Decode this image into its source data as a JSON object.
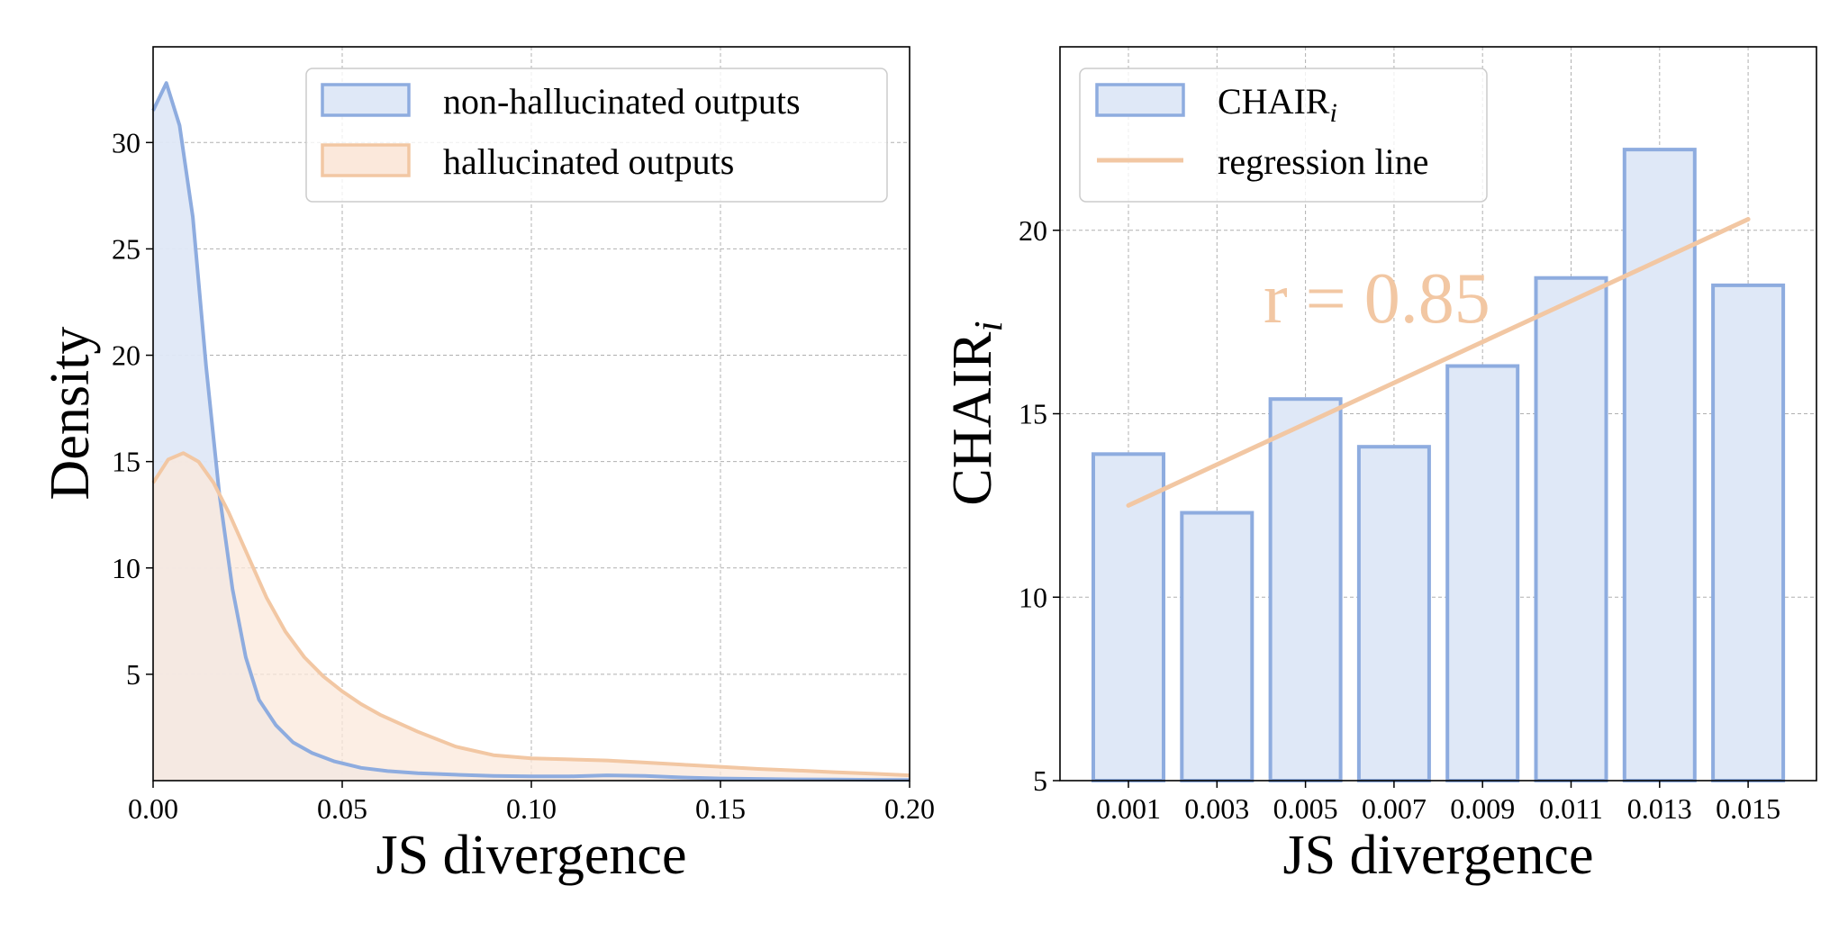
{
  "colors": {
    "blue_line": "#8eacdf",
    "blue_fill": "#dfe8f7",
    "orange_line": "#f2c7a3",
    "orange_fill": "#fbe8db",
    "overlap_fill": "#e3e1e6"
  },
  "chart_data": [
    {
      "type": "area",
      "xlabel": "JS divergence",
      "ylabel": "Density",
      "xlim": [
        0,
        0.2
      ],
      "ylim": [
        0,
        34.5
      ],
      "x_ticks": [
        0,
        0.05,
        0.1,
        0.15,
        0.2
      ],
      "x_tick_labels": [
        "0.00",
        "0.05",
        "0.10",
        "0.15",
        "0.20"
      ],
      "y_ticks": [
        5,
        10,
        15,
        20,
        25,
        30
      ],
      "y_tick_labels": [
        "5",
        "10",
        "15",
        "20",
        "25",
        "30"
      ],
      "grid": true,
      "legend_position": "top-right",
      "series": [
        {
          "name": "non-hallucinated outputs",
          "color_key": "blue",
          "x": [
            0,
            0.0035,
            0.007,
            0.0105,
            0.014,
            0.0175,
            0.021,
            0.0245,
            0.028,
            0.0325,
            0.037,
            0.042,
            0.048,
            0.055,
            0.062,
            0.07,
            0.08,
            0.09,
            0.1,
            0.11,
            0.12,
            0.13,
            0.14,
            0.15,
            0.16,
            0.17,
            0.18,
            0.19,
            0.2
          ],
          "y": [
            31.5,
            32.8,
            30.8,
            26.5,
            19.5,
            13.5,
            9.0,
            5.8,
            3.8,
            2.6,
            1.8,
            1.3,
            0.9,
            0.6,
            0.45,
            0.35,
            0.28,
            0.22,
            0.2,
            0.2,
            0.25,
            0.22,
            0.15,
            0.1,
            0.08,
            0.06,
            0.05,
            0.04,
            0.03
          ]
        },
        {
          "name": "hallucinated outputs",
          "color_key": "orange",
          "x": [
            0,
            0.004,
            0.008,
            0.012,
            0.016,
            0.02,
            0.025,
            0.03,
            0.035,
            0.04,
            0.045,
            0.05,
            0.055,
            0.06,
            0.07,
            0.08,
            0.09,
            0.1,
            0.11,
            0.12,
            0.13,
            0.14,
            0.15,
            0.16,
            0.17,
            0.18,
            0.19,
            0.2
          ],
          "y": [
            14.0,
            15.1,
            15.4,
            15.0,
            14.0,
            12.6,
            10.6,
            8.6,
            7.0,
            5.8,
            4.9,
            4.2,
            3.6,
            3.1,
            2.3,
            1.6,
            1.2,
            1.05,
            1.0,
            0.95,
            0.85,
            0.75,
            0.65,
            0.55,
            0.48,
            0.4,
            0.33,
            0.25
          ]
        }
      ]
    },
    {
      "type": "bar",
      "xlabel": "JS divergence",
      "ylabel": "CHAIR",
      "ylabel_subscript": "i",
      "categories": [
        "0.001",
        "0.003",
        "0.005",
        "0.007",
        "0.009",
        "0.011",
        "0.013",
        "0.015"
      ],
      "ylim": [
        5,
        25
      ],
      "y_ticks": [
        5,
        10,
        15,
        20
      ],
      "y_tick_labels": [
        "5",
        "10",
        "15",
        "20"
      ],
      "grid": true,
      "legend_position": "top-left",
      "series": [
        {
          "name": "CHAIR",
          "name_subscript": "i",
          "values": [
            13.9,
            12.3,
            15.4,
            14.1,
            16.3,
            18.7,
            22.2,
            18.5
          ]
        }
      ],
      "regression_line": {
        "name": "regression line",
        "start": [
          0.001,
          12.5
        ],
        "end": [
          0.015,
          20.3
        ]
      },
      "annotations": [
        "r = 0.85"
      ]
    }
  ]
}
